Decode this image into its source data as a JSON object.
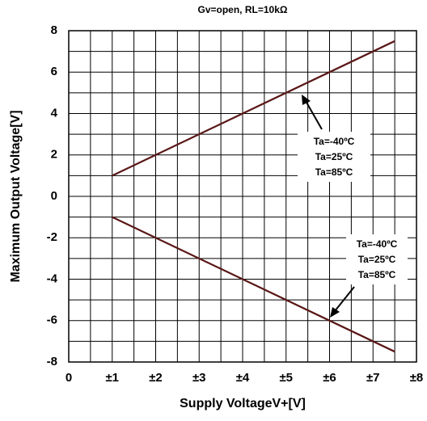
{
  "chart_data": {
    "type": "line",
    "subtitle": "Gv=open, RL=10kΩ",
    "x_label": "Supply VoltageV+[V]",
    "y_label": "Maximum Output Voltage[V]",
    "x": [
      1,
      7.5
    ],
    "series": [
      {
        "color": "#000000",
        "values": [
          1,
          7.5
        ]
      },
      {
        "color": "#8b0000",
        "values": [
          1,
          7.5
        ]
      },
      {
        "color": "#5a1a1a",
        "values": [
          1,
          7.5
        ]
      },
      {
        "color": "#000000",
        "values": [
          -1,
          -7.5
        ]
      },
      {
        "color": "#8b0000",
        "values": [
          -1,
          -7.5
        ]
      },
      {
        "color": "#5a1a1a",
        "values": [
          -1,
          -7.5
        ]
      }
    ],
    "xlim": [
      0,
      8
    ],
    "ylim": [
      -8,
      8
    ],
    "xticks": [
      0,
      {
        "value": 1,
        "label": "±1"
      },
      {
        "value": 2,
        "label": "±2"
      },
      {
        "value": 3,
        "label": "±3"
      },
      {
        "value": 4,
        "label": "±4"
      },
      {
        "value": 5,
        "label": "±5"
      },
      {
        "value": 6,
        "label": "±6"
      },
      {
        "value": 7,
        "label": "±7"
      },
      {
        "value": 8,
        "label": "±8"
      }
    ],
    "yticks": [
      -8,
      -6,
      -4,
      -2,
      0,
      2,
      4,
      6,
      8
    ],
    "x_minor_grid": [
      0.5,
      1.5,
      2.5,
      3.5,
      4.5,
      5.5,
      6.5,
      7.5
    ],
    "y_minor_grid": [
      -7,
      -5,
      -3,
      -1,
      1,
      3,
      5,
      7
    ],
    "grid": true,
    "annotations": [
      {
        "lines": [
          "Ta=-40ºC",
          "Ta=25ºC",
          "Ta=85ºC"
        ]
      },
      {
        "lines": [
          "Ta=-40ºC",
          "Ta=25ºC",
          "Ta=85ºC"
        ]
      }
    ]
  }
}
